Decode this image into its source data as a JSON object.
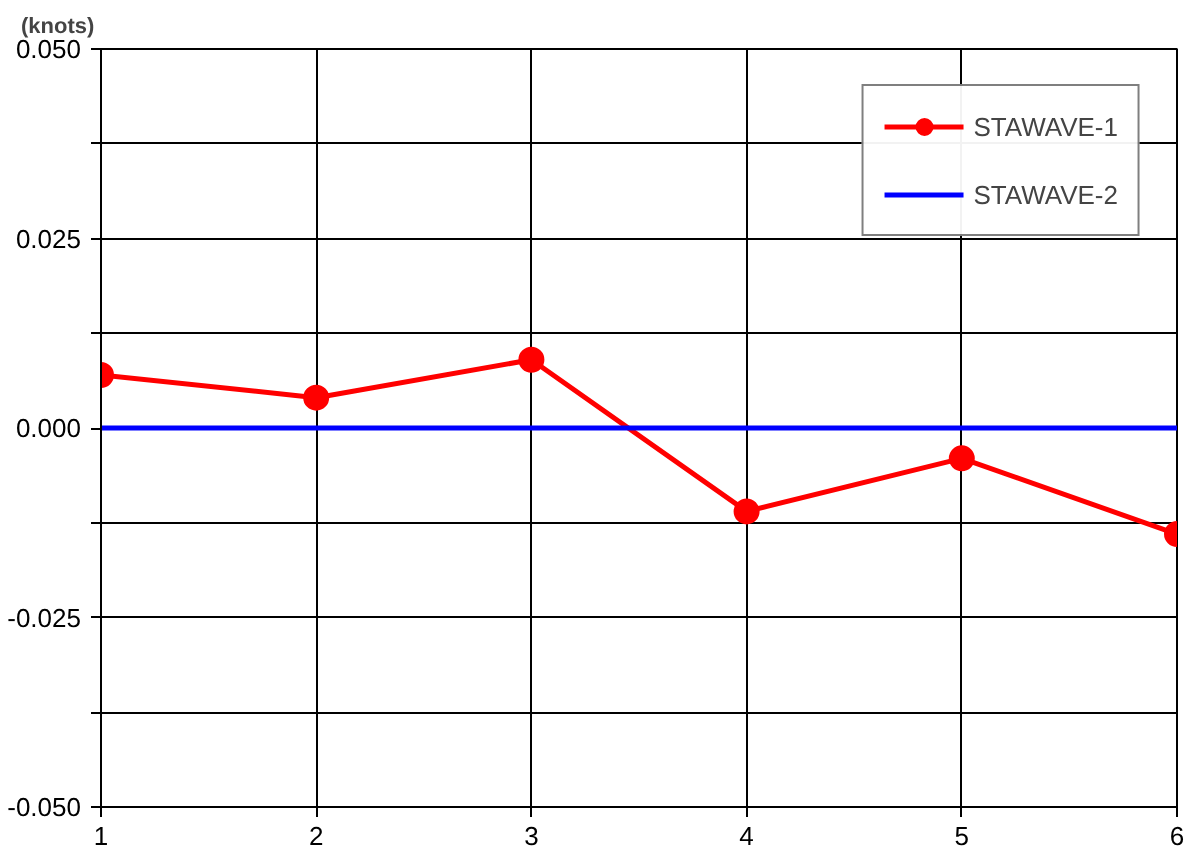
{
  "chart_data": {
    "type": "line",
    "ylabel": "(knots)",
    "x": [
      1,
      2,
      3,
      4,
      5,
      6
    ],
    "xlim": [
      1,
      6
    ],
    "xticks": [
      1,
      2,
      3,
      4,
      5,
      6
    ],
    "ylim": [
      -0.05,
      0.05
    ],
    "yticks": [
      {
        "value": -0.05,
        "label": "-0.050"
      },
      {
        "value": -0.0375,
        "label": null
      },
      {
        "value": -0.025,
        "label": "-0.025"
      },
      {
        "value": -0.0125,
        "label": null
      },
      {
        "value": 0,
        "label": "0.000"
      },
      {
        "value": 0.0125,
        "label": null
      },
      {
        "value": 0.025,
        "label": "0.025"
      },
      {
        "value": 0.0375,
        "label": null
      },
      {
        "value": 0.05,
        "label": "0.050"
      }
    ],
    "series": [
      {
        "name": "STAWAVE-1",
        "color": "#ff0000",
        "marker": "circle",
        "values": [
          0.007,
          0.004,
          0.009,
          -0.011,
          -0.004,
          -0.014
        ]
      },
      {
        "name": "STAWAVE-2",
        "color": "#0000ff",
        "marker": "none",
        "values": [
          0,
          0,
          0,
          0,
          0,
          0
        ]
      }
    ],
    "grid": true,
    "legend": "top right",
    "line_style": "solid"
  }
}
